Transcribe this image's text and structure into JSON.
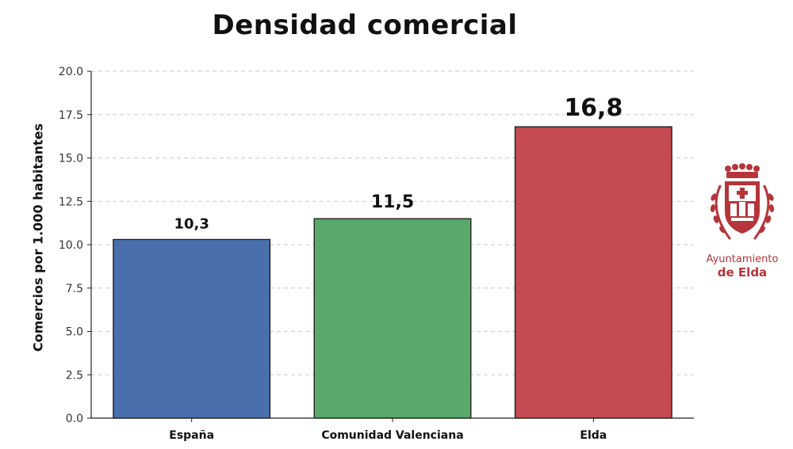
{
  "chart_data": {
    "type": "bar",
    "title": "Densidad comercial",
    "xlabel": "",
    "ylabel": "Comercios por 1.000 habitantes",
    "categories": [
      "España",
      "Comunidad Valenciana",
      "Elda"
    ],
    "values": [
      10.3,
      11.5,
      16.8
    ],
    "data_labels": [
      "10,3",
      "11,5",
      "16,8"
    ],
    "colors": [
      "#4a6fad",
      "#58a96a",
      "#c44b51"
    ],
    "ylim": [
      0,
      20
    ],
    "yticks": [
      "0.0",
      "2.5",
      "5.0",
      "7.5",
      "10.0",
      "12.5",
      "15.0",
      "17.5",
      "20.0"
    ],
    "grid": true,
    "grid_style": "dashed horizontal"
  },
  "logo": {
    "line1": "Ayuntamiento",
    "line2": "de Elda",
    "color": "#b5353a"
  }
}
